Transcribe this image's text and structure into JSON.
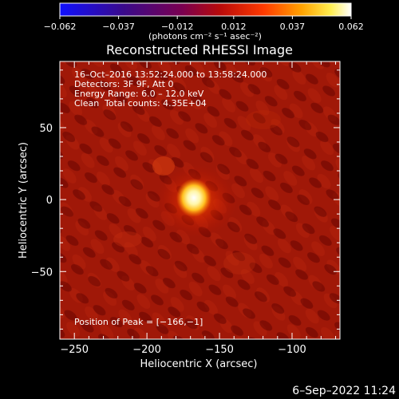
{
  "chart_data": {
    "type": "heatmap",
    "title": "Reconstructed RHESSI Image",
    "xlabel": "Heliocentric X (arcsec)",
    "ylabel": "Heliocentric Y (arcsec)",
    "xlim": [
      -260,
      -67
    ],
    "ylim": [
      -97,
      96
    ],
    "x_ticks": [
      -250,
      -200,
      -150,
      -100
    ],
    "y_ticks": [
      -50,
      0,
      50
    ],
    "colorbar": {
      "range": [
        -0.062,
        0.062
      ],
      "ticks": [
        -0.062,
        -0.037,
        -0.012,
        0.012,
        0.037,
        0.062
      ],
      "tick_labels": [
        "−0.062",
        "−0.037",
        "−0.012",
        "0.012",
        "0.037",
        "0.062"
      ],
      "unit_label": "(photons cm⁻² s⁻¹ asec⁻²)",
      "colormap": "rhessi-thermal (blue → purple → red → yellow → white)"
    },
    "peak": {
      "x": -166,
      "y": -1
    },
    "annotations": {
      "time_range": "16–Oct–2016 13:52:24.000 to 13:58:24.000",
      "detectors": "Detectors: 3F 9F, Att 0",
      "energy": "Energy Range: 6.0 – 12.0 keV",
      "clean_label": "Clean",
      "counts": "Total counts: 4.35E+04",
      "peak_text": "Position of Peak = [−166,−1]"
    }
  },
  "footer": {
    "timestamp": "6–Sep–2022 11:24"
  },
  "colors": {
    "background": "#000000",
    "text": "#ffffff"
  }
}
